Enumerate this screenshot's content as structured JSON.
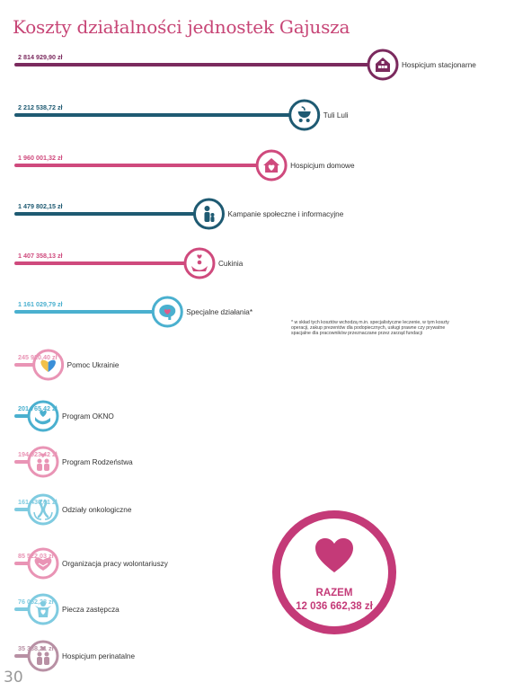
{
  "page_title": "Koszty działalności jednostek Gajusza",
  "page_number": "30",
  "footnote": "* w skład tych kosztów wchodzą m.in. specjalistyczne leczenie, w tym koszty operacji, zakup prezentów dla podopiecznych, usługi prawne czy prywatne spacjalne dla pracowników przeznaczane przez zarząd fundacji",
  "total": {
    "label": "RAZEM",
    "value": "12 036 662,38 zł"
  },
  "colors": {
    "plum": "#7b2a5e",
    "teal": "#1e5a72",
    "pink": "#cf4a7d",
    "lightblue": "#4ab0cf",
    "lightpink": "#e994b5",
    "lighterblue": "#7fcbe0",
    "mauve": "#b890a4",
    "total": "#c43a78"
  },
  "chart_data": {
    "type": "bar",
    "title": "Koszty działalności jednostek Gajusza",
    "unit": "zł",
    "categories": [
      "Hospicjum stacjonarne",
      "Tuli Luli",
      "Hospicjum domowe",
      "Kampanie społeczne i informacyjne",
      "Cukinia",
      "Specjalne działania*",
      "Pomoc Ukrainie",
      "Program OKNO",
      "Program Rodzeństwa",
      "Odziały onkologiczne",
      "Organizacja pracy wolontariuszy",
      "Piecza zastępcza",
      "Hospicjum perinatalne"
    ],
    "values": [
      2814929.9,
      2212538.72,
      1960001.32,
      1479802.15,
      1407358.13,
      1161029.79,
      245920.4,
      201765.42,
      194923.42,
      161430.61,
      85522.03,
      76052.28,
      35388.21
    ],
    "value_labels": [
      "2 814 929,90 zł",
      "2 212 538,72 zł",
      "1 960 001,32 zł",
      "1 479 802,15 zł",
      "1 407 358,13 zł",
      "1 161 029,79 zł",
      "245 920,40 zł",
      "201 765,42 zł",
      "194 923,42 zł",
      "161 430,61 zł",
      "85 522,03 zł",
      "76 052,28 zł",
      "35 388,21 zł"
    ],
    "colors": [
      "plum",
      "teal",
      "pink",
      "teal",
      "pink",
      "lightblue",
      "lightpink",
      "lightblue",
      "lightpink",
      "lighterblue",
      "lightpink",
      "lighterblue",
      "mauve"
    ],
    "icons": [
      "house-icon",
      "stroller-icon",
      "home-heart-icon",
      "parent-child-icon",
      "family-heart-icon",
      "brain-heart-icon",
      "heart-hands-icon",
      "hand-heart-icon",
      "siblings-icon",
      "ribbon-icon",
      "handshake-heart-icon",
      "child-heart-icon",
      "parents-icon"
    ],
    "total": 12036662.38
  }
}
